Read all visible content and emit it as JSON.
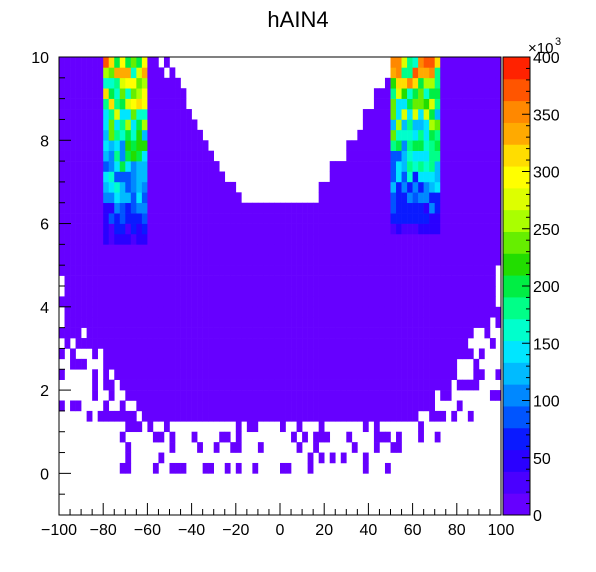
{
  "chart_data": {
    "type": "heatmap",
    "title": "hAIN4",
    "xlabel": "",
    "ylabel": "",
    "xlim": [
      -100,
      100
    ],
    "ylim": [
      -1,
      10
    ],
    "x_ticks": [
      "−100",
      "−80",
      "−60",
      "−40",
      "−20",
      "0",
      "20",
      "40",
      "60",
      "80",
      "100"
    ],
    "x_tick_values": [
      -100,
      -80,
      -60,
      -40,
      -20,
      0,
      20,
      40,
      60,
      80,
      100
    ],
    "y_ticks": [
      "0",
      "2",
      "4",
      "6",
      "8",
      "10"
    ],
    "y_tick_values": [
      0,
      2,
      4,
      6,
      8,
      10
    ],
    "bins": {
      "x_count": 80,
      "y_count": 44
    },
    "color_scale": {
      "min": 0,
      "max": 400,
      "multiplier_label": "×10",
      "multiplier_exponent": "3",
      "ticks": [
        "0",
        "50",
        "100",
        "150",
        "200",
        "250",
        "300",
        "350",
        "400"
      ],
      "tick_values": [
        0,
        50,
        100,
        150,
        200,
        250,
        300,
        350,
        400
      ],
      "palette": [
        "#6600ff",
        "#4a00ff",
        "#2a00ff",
        "#0a1aff",
        "#0055ff",
        "#0088ff",
        "#00bbff",
        "#00e6ff",
        "#00ffcc",
        "#00ff88",
        "#00ee44",
        "#22dd00",
        "#66ee00",
        "#aaff00",
        "#ddff00",
        "#ffff00",
        "#ffdd00",
        "#ffaa00",
        "#ff8800",
        "#ff5500",
        "#ff2200"
      ]
    },
    "description_of_structure": "",
    "hot_bands": [
      {
        "x_range": [
          -80,
          -60
        ],
        "y_range": [
          5.5,
          10
        ]
      },
      {
        "x_range": [
          50,
          72
        ],
        "y_range": [
          5.8,
          10
        ]
      }
    ]
  }
}
